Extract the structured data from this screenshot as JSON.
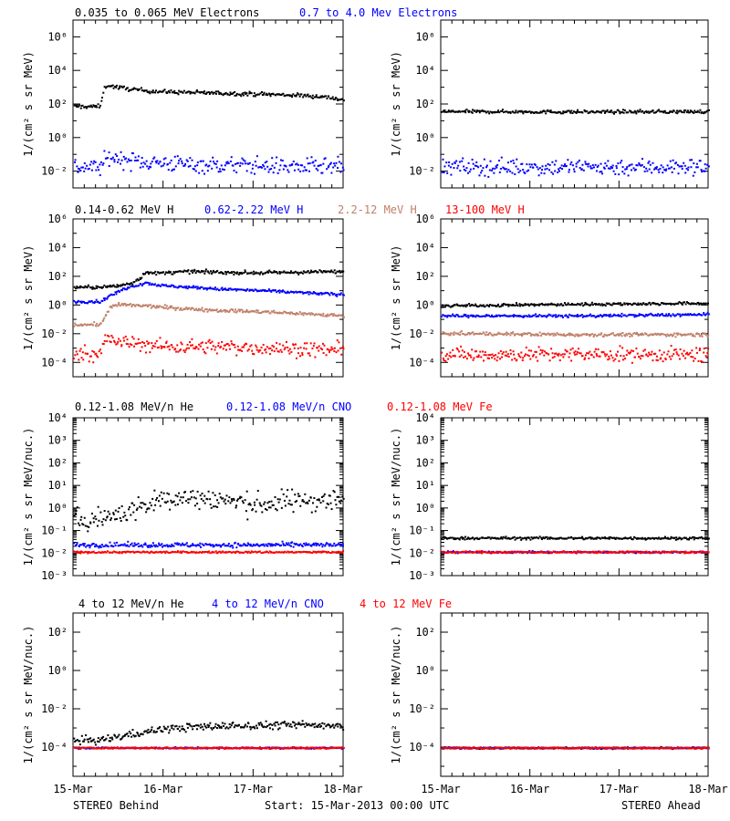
{
  "colors": {
    "black": "#000000",
    "blue": "#0000ff",
    "brown": "#c0806a",
    "red": "#ff0000"
  },
  "footer": {
    "left": "STEREO Behind",
    "center": "Start: 15-Mar-2013 00:00 UTC",
    "right": "STEREO Ahead"
  },
  "x_ticks": [
    "15-Mar",
    "16-Mar",
    "17-Mar",
    "18-Mar"
  ],
  "chart_data": [
    {
      "type": "scatter",
      "spacecraft": "STEREO Behind",
      "row": 1,
      "ylabel": "1/(cm² s sr MeV)",
      "yscale": "log",
      "ylim": [
        0.001,
        10000000
      ],
      "ytick_exponents": [
        -2,
        0,
        2,
        4,
        6
      ],
      "x_unit": "days since 15-Mar-2013 00:00 UTC",
      "xlim": [
        0,
        3
      ],
      "series": [
        {
          "name": "0.035 to 0.065 MeV Electrons",
          "color": "#000000",
          "scatter": 0.06,
          "x": [
            0,
            0.3,
            0.31,
            0.33,
            0.37,
            0.45,
            0.6,
            0.8,
            1.0,
            1.3,
            1.6,
            2.0,
            2.3,
            2.6,
            2.8,
            3.0
          ],
          "y": [
            80,
            80,
            200,
            800,
            1500,
            1200,
            900,
            700,
            600,
            550,
            500,
            450,
            400,
            350,
            300,
            200
          ]
        },
        {
          "name": "0.7 to 4.0 Mev Electrons",
          "color": "#0000ff",
          "scatter": 0.25,
          "x": [
            0,
            0.3,
            0.38,
            0.5,
            0.8,
            1.2,
            1.6,
            2.0,
            2.5,
            3.0
          ],
          "y": [
            0.02,
            0.02,
            0.08,
            0.06,
            0.04,
            0.03,
            0.025,
            0.025,
            0.02,
            0.02
          ]
        }
      ]
    },
    {
      "type": "scatter",
      "spacecraft": "STEREO Ahead",
      "row": 1,
      "ylabel": "1/(cm² s sr MeV)",
      "yscale": "log",
      "ylim": [
        0.001,
        10000000
      ],
      "ytick_exponents": [
        -2,
        0,
        2,
        4,
        6
      ],
      "x_unit": "days since 15-Mar-2013 00:00 UTC",
      "xlim": [
        0,
        3
      ],
      "series": [
        {
          "name": "0.035 to 0.065 MeV Electrons",
          "color": "#000000",
          "scatter": 0.05,
          "x": [
            0,
            1.5,
            3.0
          ],
          "y": [
            40,
            38,
            40
          ]
        },
        {
          "name": "0.7 to 4.0 Mev Electrons",
          "color": "#0000ff",
          "scatter": 0.25,
          "x": [
            0,
            1.5,
            3.0
          ],
          "y": [
            0.02,
            0.02,
            0.02
          ]
        }
      ]
    },
    {
      "type": "scatter",
      "spacecraft": "STEREO Behind",
      "row": 2,
      "ylabel": "1/(cm² s sr MeV)",
      "yscale": "log",
      "ylim": [
        1e-05,
        1000000
      ],
      "ytick_exponents": [
        -4,
        -2,
        0,
        2,
        4,
        6
      ],
      "x_unit": "days since 15-Mar-2013 00:00 UTC",
      "xlim": [
        0,
        3
      ],
      "series": [
        {
          "name": "0.14-0.62 MeV H",
          "color": "#000000",
          "scatter": 0.06,
          "x": [
            0,
            0.3,
            0.5,
            0.65,
            0.75,
            0.8,
            0.9,
            1.0,
            1.3,
            1.6,
            2.0,
            2.5,
            3.0
          ],
          "y": [
            20,
            20,
            25,
            40,
            100,
            250,
            180,
            200,
            250,
            220,
            200,
            220,
            250
          ]
        },
        {
          "name": "0.62-2.22 MeV H",
          "color": "#0000ff",
          "scatter": 0.05,
          "x": [
            0,
            0.3,
            0.4,
            0.5,
            0.6,
            0.8,
            1.0,
            1.3,
            1.6,
            2.0,
            2.3,
            2.6,
            3.0
          ],
          "y": [
            2,
            2,
            5,
            10,
            20,
            40,
            25,
            20,
            15,
            12,
            10,
            8,
            6
          ]
        },
        {
          "name": "2.2-12 MeV H",
          "color": "#c0806a",
          "scatter": 0.06,
          "x": [
            0,
            0.3,
            0.4,
            0.5,
            0.8,
            1.0,
            1.3,
            1.6,
            2.0,
            2.5,
            3.0
          ],
          "y": [
            0.05,
            0.05,
            0.8,
            1.2,
            1.0,
            0.8,
            0.6,
            0.5,
            0.4,
            0.3,
            0.2
          ]
        },
        {
          "name": "13-100 MeV H",
          "color": "#ff0000",
          "scatter": 0.25,
          "x": [
            0,
            0.3,
            0.35,
            0.5,
            0.8,
            1.0,
            1.5,
            2.0,
            2.5,
            3.0
          ],
          "y": [
            0.0005,
            0.0005,
            0.005,
            0.003,
            0.002,
            0.0015,
            0.0015,
            0.0012,
            0.001,
            0.0008
          ]
        }
      ]
    },
    {
      "type": "scatter",
      "spacecraft": "STEREO Ahead",
      "row": 2,
      "ylabel": "1/(cm² s sr MeV)",
      "yscale": "log",
      "ylim": [
        1e-05,
        1000000
      ],
      "ytick_exponents": [
        -4,
        -2,
        0,
        2,
        4,
        6
      ],
      "x_unit": "days since 15-Mar-2013 00:00 UTC",
      "xlim": [
        0,
        3
      ],
      "series": [
        {
          "name": "0.14-0.62 MeV H",
          "color": "#000000",
          "scatter": 0.05,
          "x": [
            0,
            1.5,
            3.0
          ],
          "y": [
            1.0,
            1.3,
            1.5
          ]
        },
        {
          "name": "0.62-2.22 MeV H",
          "color": "#0000ff",
          "scatter": 0.05,
          "x": [
            0,
            1.5,
            3.0
          ],
          "y": [
            0.2,
            0.2,
            0.25
          ]
        },
        {
          "name": "2.2-12 MeV H",
          "color": "#c0806a",
          "scatter": 0.06,
          "x": [
            0,
            1.5,
            3.0
          ],
          "y": [
            0.012,
            0.01,
            0.01
          ]
        },
        {
          "name": "13-100 MeV H",
          "color": "#ff0000",
          "scatter": 0.25,
          "x": [
            0,
            1.5,
            3.0
          ],
          "y": [
            0.0004,
            0.0004,
            0.0004
          ]
        }
      ]
    },
    {
      "type": "scatter",
      "spacecraft": "STEREO Behind",
      "row": 3,
      "ylabel": "1/(cm² s sr MeV/nuc.)",
      "yscale": "log",
      "ylim": [
        0.001,
        10000
      ],
      "ytick_exponents": [
        -3,
        -2,
        -1,
        0,
        1,
        2,
        3,
        4
      ],
      "x_unit": "days since 15-Mar-2013 00:00 UTC",
      "xlim": [
        0,
        3
      ],
      "series": [
        {
          "name": "0.12-1.08 MeV/n He",
          "color": "#000000",
          "scatter": 0.25,
          "x": [
            0,
            0.3,
            0.5,
            0.7,
            0.9,
            1.0,
            1.2,
            1.5,
            1.8,
            2.0,
            2.3,
            2.6,
            3.0
          ],
          "y": [
            0.3,
            0.4,
            0.6,
            1.0,
            2.0,
            3.0,
            3.0,
            3.0,
            2.0,
            1.5,
            2.0,
            2.5,
            2.5
          ]
        },
        {
          "name": "0.12-1.08 MeV/n CNO",
          "color": "#0000ff",
          "scatter": 0.05,
          "x": [
            0,
            3.0
          ],
          "y": [
            0.025,
            0.025
          ]
        },
        {
          "name": "0.12-1.08 MeV Fe",
          "color": "#ff0000",
          "scatter": 0.02,
          "x": [
            0,
            3.0
          ],
          "y": [
            0.012,
            0.012
          ]
        }
      ]
    },
    {
      "type": "scatter",
      "spacecraft": "STEREO Ahead",
      "row": 3,
      "ylabel": "1/(cm² s sr MeV/nuc.)",
      "yscale": "log",
      "ylim": [
        0.001,
        10000
      ],
      "ytick_exponents": [
        -3,
        -2,
        -1,
        0,
        1,
        2,
        3,
        4
      ],
      "x_unit": "days since 15-Mar-2013 00:00 UTC",
      "xlim": [
        0,
        3
      ],
      "series": [
        {
          "name": "0.12-1.08 MeV/n He",
          "color": "#000000",
          "scatter": 0.03,
          "x": [
            0,
            3.0
          ],
          "y": [
            0.05,
            0.05
          ]
        },
        {
          "name": "0.12-1.08 MeV/n CNO",
          "color": "#0000ff",
          "scatter": 0.02,
          "x": [
            0,
            3.0
          ],
          "y": [
            0.012,
            0.012
          ]
        },
        {
          "name": "0.12-1.08 MeV Fe",
          "color": "#ff0000",
          "scatter": 0.02,
          "x": [
            0,
            3.0
          ],
          "y": [
            0.012,
            0.012
          ]
        }
      ]
    },
    {
      "type": "scatter",
      "spacecraft": "STEREO Behind",
      "row": 4,
      "ylabel": "1/(cm² s sr MeV/nuc.)",
      "yscale": "log",
      "ylim": [
        3e-06,
        1000
      ],
      "ytick_exponents": [
        -4,
        -2,
        0,
        2
      ],
      "x_unit": "days since 15-Mar-2013 00:00 UTC",
      "xlim": [
        0,
        3
      ],
      "series": [
        {
          "name": "4 to 12 MeV/n He",
          "color": "#000000",
          "scatter": 0.1,
          "x": [
            0,
            0.3,
            0.5,
            0.8,
            1.0,
            1.3,
            1.6,
            2.0,
            2.5,
            3.0
          ],
          "y": [
            0.00025,
            0.00025,
            0.0004,
            0.0007,
            0.001,
            0.0012,
            0.0014,
            0.0015,
            0.0016,
            0.0016
          ]
        },
        {
          "name": "4 to 12 MeV/n CNO",
          "color": "#0000ff",
          "scatter": 0.02,
          "x": [
            0,
            3.0
          ],
          "y": [
            0.0001,
            0.0001
          ]
        },
        {
          "name": "4 to 12 MeV Fe",
          "color": "#ff0000",
          "scatter": 0.02,
          "x": [
            0,
            3.0
          ],
          "y": [
            0.0001,
            0.0001
          ]
        }
      ]
    },
    {
      "type": "scatter",
      "spacecraft": "STEREO Ahead",
      "row": 4,
      "ylabel": "1/(cm² s sr MeV/nuc.)",
      "yscale": "log",
      "ylim": [
        3e-06,
        1000
      ],
      "ytick_exponents": [
        -4,
        -2,
        0,
        2
      ],
      "x_unit": "days since 15-Mar-2013 00:00 UTC",
      "xlim": [
        0,
        3
      ],
      "series": [
        {
          "name": "4 to 12 MeV/n He",
          "color": "#000000",
          "scatter": 0.02,
          "x": [
            0,
            3.0
          ],
          "y": [
            0.0001,
            0.0001
          ]
        },
        {
          "name": "4 to 12 MeV/n CNO",
          "color": "#0000ff",
          "scatter": 0.02,
          "x": [
            0,
            3.0
          ],
          "y": [
            0.0001,
            0.0001
          ]
        },
        {
          "name": "4 to 12 MeV Fe",
          "color": "#ff0000",
          "scatter": 0.02,
          "x": [
            0,
            3.0
          ],
          "y": [
            0.0001,
            0.0001
          ]
        }
      ]
    }
  ]
}
